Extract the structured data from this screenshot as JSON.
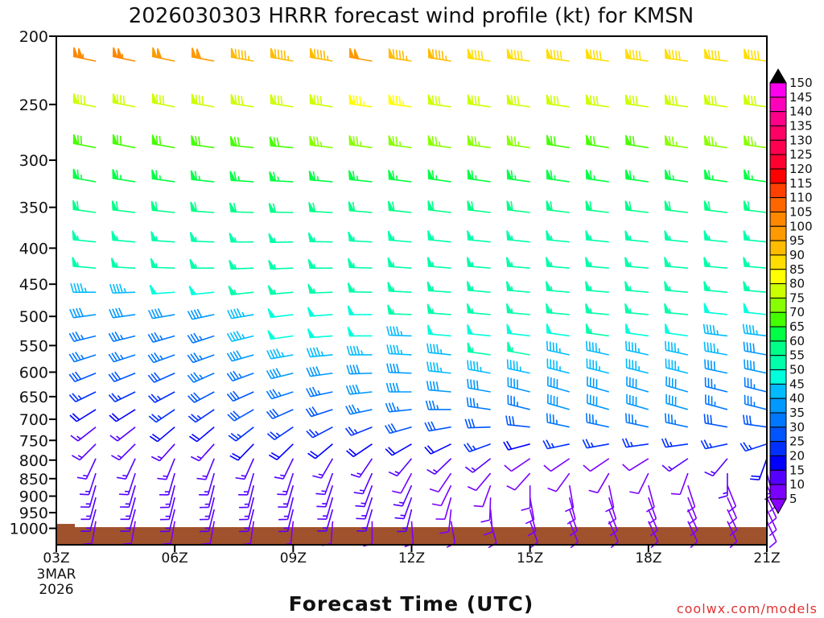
{
  "chart_data": {
    "type": "wind-barb-profile",
    "title": "2026030303 HRRR forecast wind profile (kt) for KMSN",
    "xlabel": "Forecast Time (UTC)",
    "ylabel": "",
    "credit": "coolwx.com/models",
    "x_ticks": [
      {
        "hour": 3,
        "label": "03Z",
        "sub": [
          "3MAR",
          "2026"
        ]
      },
      {
        "hour": 6,
        "label": "06Z"
      },
      {
        "hour": 9,
        "label": "09Z"
      },
      {
        "hour": 12,
        "label": "12Z"
      },
      {
        "hour": 15,
        "label": "15Z"
      },
      {
        "hour": 18,
        "label": "18Z"
      },
      {
        "hour": 21,
        "label": "21Z"
      }
    ],
    "xlim_hours": [
      3,
      21
    ],
    "y_ticks": [
      200,
      250,
      300,
      350,
      400,
      450,
      500,
      550,
      600,
      650,
      700,
      750,
      800,
      850,
      900,
      950,
      1000
    ],
    "ylim_hPa": [
      200,
      1056
    ],
    "y_scale": "log",
    "surface_pressure_hPa": 996,
    "colorbar": {
      "labels": [
        150,
        145,
        140,
        135,
        130,
        125,
        120,
        115,
        110,
        105,
        100,
        95,
        90,
        85,
        80,
        75,
        70,
        65,
        60,
        55,
        50,
        45,
        40,
        35,
        30,
        25,
        20,
        15,
        10,
        5
      ],
      "colors": [
        "#ff00ee",
        "#ff00bb",
        "#ff0088",
        "#ff0066",
        "#ff0050",
        "#ff0030",
        "#ff0000",
        "#ff4000",
        "#ff6600",
        "#ff8800",
        "#ff9900",
        "#ffbb00",
        "#ffdd00",
        "#ffff00",
        "#ccff00",
        "#88ff00",
        "#44ff00",
        "#00ff44",
        "#00ff88",
        "#00ffaa",
        "#00ffdd",
        "#00bbff",
        "#0099ff",
        "#0077ff",
        "#0055ff",
        "#0030ff",
        "#0000ff",
        "#5500ff",
        "#7a00ff"
      ],
      "over_color": "#000000",
      "under_color": "#8800ff"
    },
    "forecast_hours": [
      4,
      5,
      6,
      7,
      8,
      9,
      10,
      11,
      12,
      13,
      14,
      15,
      16,
      17,
      18,
      19,
      20,
      21
    ],
    "levels_hPa": [
      217,
      252,
      288,
      322,
      356,
      392,
      427,
      462,
      497,
      533,
      567,
      602,
      640,
      678,
      718,
      759,
      796,
      835,
      869,
      904,
      940,
      977
    ],
    "speed_kt": [
      [
        105,
        105,
        100,
        100,
        95,
        95,
        95,
        100,
        95,
        95,
        90,
        90,
        90,
        90,
        90,
        90,
        90,
        90
      ],
      [
        80,
        80,
        80,
        80,
        80,
        80,
        80,
        85,
        85,
        80,
        80,
        80,
        80,
        80,
        80,
        80,
        80,
        80
      ],
      [
        70,
        70,
        70,
        70,
        70,
        70,
        75,
        75,
        75,
        75,
        75,
        75,
        70,
        70,
        70,
        75,
        75,
        75
      ],
      [
        65,
        65,
        65,
        65,
        65,
        65,
        65,
        65,
        65,
        65,
        65,
        65,
        65,
        65,
        65,
        65,
        65,
        65
      ],
      [
        60,
        60,
        60,
        60,
        60,
        60,
        60,
        60,
        60,
        60,
        60,
        60,
        60,
        60,
        60,
        60,
        60,
        60
      ],
      [
        55,
        55,
        55,
        55,
        55,
        55,
        55,
        55,
        55,
        55,
        55,
        55,
        55,
        55,
        55,
        55,
        55,
        55
      ],
      [
        55,
        55,
        55,
        55,
        55,
        55,
        55,
        55,
        55,
        55,
        55,
        55,
        55,
        55,
        55,
        55,
        55,
        55
      ],
      [
        45,
        45,
        50,
        50,
        55,
        55,
        55,
        55,
        55,
        55,
        55,
        55,
        55,
        55,
        55,
        55,
        55,
        55
      ],
      [
        40,
        40,
        40,
        40,
        45,
        50,
        50,
        50,
        55,
        55,
        55,
        55,
        55,
        55,
        55,
        55,
        50,
        50
      ],
      [
        35,
        35,
        35,
        35,
        45,
        50,
        50,
        50,
        45,
        50,
        50,
        50,
        50,
        55,
        50,
        50,
        45,
        45
      ],
      [
        35,
        35,
        35,
        35,
        40,
        45,
        45,
        45,
        45,
        45,
        55,
        55,
        45,
        45,
        45,
        45,
        45,
        40
      ],
      [
        30,
        30,
        30,
        35,
        35,
        40,
        40,
        40,
        40,
        45,
        45,
        45,
        45,
        45,
        45,
        45,
        40,
        40
      ],
      [
        25,
        25,
        25,
        30,
        30,
        35,
        35,
        40,
        40,
        40,
        40,
        40,
        40,
        40,
        40,
        40,
        35,
        35
      ],
      [
        20,
        20,
        25,
        25,
        30,
        30,
        30,
        35,
        35,
        35,
        35,
        35,
        40,
        40,
        40,
        40,
        35,
        35
      ],
      [
        15,
        15,
        20,
        20,
        25,
        25,
        25,
        25,
        30,
        30,
        30,
        30,
        35,
        35,
        35,
        35,
        30,
        30
      ],
      [
        15,
        15,
        15,
        15,
        20,
        20,
        20,
        20,
        20,
        20,
        25,
        20,
        25,
        25,
        25,
        25,
        25,
        25
      ],
      [
        15,
        15,
        15,
        15,
        15,
        15,
        15,
        15,
        15,
        15,
        15,
        10,
        10,
        10,
        10,
        15,
        15,
        20
      ],
      [
        15,
        15,
        15,
        15,
        15,
        15,
        15,
        15,
        10,
        10,
        10,
        10,
        10,
        10,
        10,
        10,
        15,
        15
      ],
      [
        15,
        15,
        15,
        15,
        15,
        15,
        15,
        15,
        15,
        10,
        10,
        10,
        10,
        10,
        10,
        10,
        10,
        10
      ],
      [
        15,
        15,
        15,
        15,
        15,
        15,
        15,
        15,
        15,
        10,
        10,
        10,
        10,
        10,
        10,
        10,
        10,
        10
      ],
      [
        15,
        15,
        15,
        15,
        15,
        15,
        15,
        15,
        15,
        10,
        10,
        10,
        10,
        10,
        10,
        10,
        10,
        10
      ],
      [
        10,
        10,
        10,
        10,
        10,
        10,
        10,
        10,
        10,
        10,
        10,
        10,
        10,
        10,
        10,
        10,
        10,
        10
      ]
    ],
    "direction_deg": [
      [
        282,
        282,
        282,
        281,
        280,
        280,
        280,
        280,
        279,
        279,
        278,
        278,
        278,
        278,
        278,
        278,
        278,
        278
      ],
      [
        281,
        281,
        281,
        280,
        279,
        279,
        279,
        278,
        278,
        278,
        278,
        278,
        278,
        278,
        278,
        278,
        278,
        278
      ],
      [
        281,
        281,
        280,
        278,
        276,
        275,
        277,
        278,
        278,
        278,
        278,
        278,
        279,
        279,
        279,
        278,
        278,
        278
      ],
      [
        280,
        279,
        278,
        276,
        274,
        273,
        275,
        276,
        277,
        278,
        278,
        278,
        278,
        278,
        278,
        278,
        278,
        278
      ],
      [
        278,
        277,
        276,
        274,
        272,
        271,
        273,
        275,
        276,
        277,
        277,
        277,
        277,
        277,
        277,
        277,
        277,
        277
      ],
      [
        276,
        275,
        274,
        272,
        270,
        269,
        271,
        273,
        275,
        276,
        276,
        276,
        276,
        276,
        276,
        276,
        276,
        276
      ],
      [
        275,
        273,
        272,
        270,
        268,
        268,
        270,
        272,
        274,
        275,
        275,
        275,
        275,
        275,
        275,
        275,
        275,
        275
      ],
      [
        270,
        268,
        266,
        264,
        264,
        265,
        268,
        271,
        273,
        274,
        275,
        275,
        275,
        275,
        275,
        275,
        275,
        275
      ],
      [
        262,
        262,
        260,
        258,
        260,
        263,
        266,
        270,
        272,
        274,
        275,
        275,
        275,
        275,
        275,
        275,
        276,
        276
      ],
      [
        256,
        256,
        254,
        252,
        256,
        262,
        266,
        270,
        272,
        275,
        276,
        277,
        278,
        278,
        278,
        278,
        277,
        277
      ],
      [
        252,
        252,
        250,
        250,
        254,
        260,
        265,
        270,
        273,
        276,
        278,
        280,
        282,
        282,
        282,
        282,
        280,
        280
      ],
      [
        248,
        248,
        246,
        246,
        250,
        256,
        262,
        268,
        272,
        276,
        280,
        282,
        284,
        284,
        284,
        284,
        282,
        282
      ],
      [
        244,
        244,
        242,
        242,
        246,
        252,
        258,
        264,
        270,
        275,
        280,
        284,
        286,
        286,
        286,
        286,
        284,
        284
      ],
      [
        238,
        238,
        236,
        236,
        240,
        246,
        252,
        258,
        264,
        270,
        278,
        284,
        286,
        286,
        286,
        286,
        285,
        284
      ],
      [
        232,
        232,
        230,
        230,
        232,
        236,
        242,
        248,
        254,
        260,
        268,
        276,
        282,
        282,
        282,
        282,
        280,
        278
      ],
      [
        225,
        225,
        222,
        222,
        224,
        226,
        230,
        236,
        240,
        244,
        250,
        255,
        258,
        260,
        262,
        262,
        258,
        252
      ],
      [
        205,
        205,
        202,
        202,
        204,
        206,
        210,
        214,
        220,
        226,
        232,
        236,
        236,
        236,
        238,
        236,
        220,
        200
      ],
      [
        198,
        198,
        196,
        196,
        196,
        198,
        200,
        204,
        208,
        214,
        220,
        222,
        216,
        210,
        206,
        200,
        180,
        165
      ],
      [
        196,
        196,
        194,
        194,
        194,
        196,
        198,
        200,
        204,
        206,
        200,
        180,
        170,
        168,
        165,
        162,
        158,
        155
      ],
      [
        195,
        195,
        194,
        194,
        194,
        194,
        196,
        198,
        200,
        196,
        182,
        170,
        165,
        162,
        160,
        158,
        156,
        155
      ],
      [
        195,
        195,
        194,
        194,
        194,
        194,
        196,
        196,
        194,
        186,
        175,
        165,
        160,
        158,
        156,
        155,
        155,
        155
      ],
      [
        190,
        190,
        190,
        190,
        188,
        186,
        184,
        180,
        176,
        170,
        165,
        160,
        158,
        156,
        155,
        155,
        155,
        155
      ]
    ]
  }
}
